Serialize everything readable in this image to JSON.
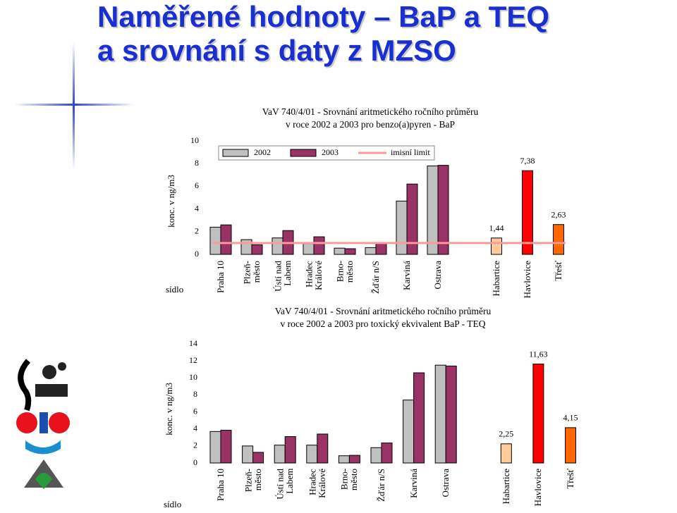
{
  "header": {
    "title": "Naměřené hodnoty – BaP a TEQ\na srovnání s daty z MZSO"
  },
  "chart_data": [
    {
      "type": "bar",
      "title": "VaV 740/4/01 - Srovnání aritmetického ročního průměru\nv roce 2002 a 2003 pro benzo(a)pyren - BaP",
      "y_label": "konc. v ng/m3",
      "x_label": "sídlo",
      "categories": [
        "Praha 10",
        "Plzeň-\nměsto",
        "Ústí nad\nLabem",
        "Hradec\nKrálové",
        "Brno-\nměsto",
        "Žďár n/S",
        "Karviná",
        "Ostrava",
        "Habartice",
        "Havlovice",
        "Třešť"
      ],
      "ylim": [
        0,
        10
      ],
      "yticks": [
        0,
        2,
        4,
        6,
        8,
        10
      ],
      "series": [
        {
          "name": "2002",
          "color": "#c0c0c0",
          "values": [
            2.4,
            1.3,
            1.45,
            0.95,
            0.55,
            0.6,
            4.7,
            7.8,
            null,
            null,
            null
          ]
        },
        {
          "name": "2003",
          "color": "#993366",
          "values": [
            2.6,
            0.85,
            2.1,
            1.55,
            0.5,
            1.0,
            6.2,
            7.85,
            null,
            null,
            null
          ]
        },
        {
          "colors": [
            null,
            null,
            null,
            null,
            null,
            null,
            null,
            null,
            "#ffcc99",
            "#ff0000",
            "#ff6600"
          ],
          "values": [
            null,
            null,
            null,
            null,
            null,
            null,
            null,
            null,
            1.44,
            7.38,
            2.63
          ],
          "value_labels": [
            null,
            null,
            null,
            null,
            null,
            null,
            null,
            null,
            "1,44",
            "7,38",
            "2,63"
          ]
        }
      ],
      "limit": {
        "name": "imisní limit",
        "value": 1,
        "color": "#ff9999"
      }
    },
    {
      "type": "bar",
      "title": "VaV 740/4/01 - Srovnání aritmetického ročního průměru\nv roce 2002 a 2003 pro toxický ekvivalent BaP - TEQ",
      "y_label": "konc. v ng/m3",
      "x_label": "sídlo",
      "categories": [
        "Praha 10",
        "Plzeň-\nměsto",
        "Ústí nad\nLabem",
        "Hradec\nKrálové",
        "Brno-\nměsto",
        "Žďár n/S",
        "Karviná",
        "Ostrava",
        "Habartice",
        "Havlovice",
        "Třešť"
      ],
      "ylim": [
        0,
        14
      ],
      "yticks": [
        0,
        2,
        4,
        6,
        8,
        10,
        12,
        14
      ],
      "series": [
        {
          "name": "2002",
          "color": "#c0c0c0",
          "values": [
            3.7,
            2.0,
            2.1,
            2.1,
            0.85,
            1.8,
            7.4,
            11.5,
            null,
            null,
            null
          ]
        },
        {
          "name": "2003",
          "color": "#993366",
          "values": [
            3.85,
            1.25,
            3.1,
            3.4,
            0.9,
            2.35,
            10.6,
            11.4,
            null,
            null,
            null
          ]
        },
        {
          "colors": [
            null,
            null,
            null,
            null,
            null,
            null,
            null,
            null,
            "#ffcc99",
            "#ff0000",
            "#ff6600"
          ],
          "values": [
            null,
            null,
            null,
            null,
            null,
            null,
            null,
            null,
            2.25,
            11.63,
            4.15
          ],
          "value_labels": [
            null,
            null,
            null,
            null,
            null,
            null,
            null,
            null,
            "2,25",
            "11,63",
            "4,15"
          ]
        }
      ]
    }
  ]
}
